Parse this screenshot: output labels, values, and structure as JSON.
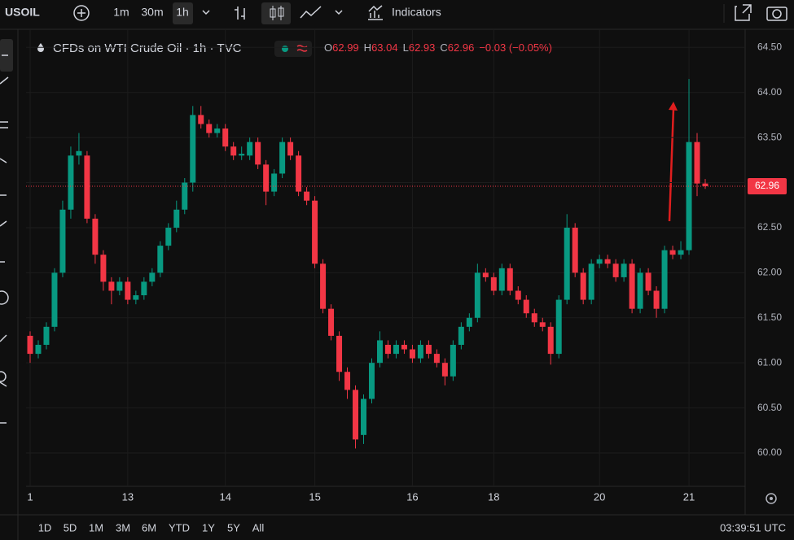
{
  "toolbar": {
    "symbol": "USOIL",
    "intervals": [
      "1m",
      "30m",
      "1h"
    ],
    "indicators": "Indicators"
  },
  "chart_data": {
    "type": "candlestick",
    "title": "CFDs on WTI Crude Oil · 1h · TVC",
    "ohlc_legend": [
      {
        "label": "O",
        "value": 62.99
      },
      {
        "label": "H",
        "value": 63.04
      },
      {
        "label": "L",
        "value": 62.93
      },
      {
        "label": "C",
        "value": 62.96
      }
    ],
    "change": "−0.03 (−0.05%)",
    "categories": [
      "1",
      null,
      null,
      null,
      null,
      null,
      null,
      null,
      null,
      null,
      null,
      null,
      "13",
      null,
      null,
      null,
      null,
      null,
      null,
      null,
      null,
      null,
      null,
      null,
      "14",
      null,
      null,
      null,
      null,
      null,
      null,
      null,
      null,
      null,
      null,
      "15",
      null,
      null,
      null,
      null,
      null,
      null,
      null,
      null,
      null,
      null,
      null,
      "16",
      null,
      null,
      null,
      null,
      null,
      null,
      null,
      null,
      null,
      "18",
      null,
      null,
      null,
      null,
      null,
      null,
      null,
      null,
      null,
      null,
      null,
      null,
      "20",
      null,
      null,
      null,
      null,
      null,
      null,
      null,
      null,
      null,
      null,
      "21",
      null,
      null
    ],
    "open": [
      61.3,
      61.1,
      61.2,
      61.4,
      62.0,
      62.7,
      63.3,
      63.3,
      62.6,
      62.2,
      61.9,
      61.8,
      61.9,
      61.7,
      61.75,
      61.9,
      62.0,
      62.3,
      62.5,
      62.7,
      63.0,
      63.75,
      63.65,
      63.55,
      63.6,
      63.4,
      63.3,
      63.3,
      63.45,
      63.2,
      62.9,
      63.1,
      63.45,
      63.3,
      62.9,
      62.8,
      62.1,
      61.6,
      61.3,
      60.9,
      60.7,
      60.2,
      60.6,
      61.0,
      61.2,
      61.1,
      61.2,
      61.15,
      61.05,
      61.2,
      61.1,
      61.0,
      60.85,
      61.2,
      61.4,
      61.5,
      62.0,
      61.95,
      61.8,
      62.05,
      61.8,
      61.7,
      61.55,
      61.45,
      61.4,
      61.1,
      61.7,
      62.5,
      62.0,
      61.7,
      62.1,
      62.15,
      62.1,
      61.95,
      62.1,
      61.6,
      62.0,
      61.8,
      61.6,
      62.25,
      62.2,
      62.25,
      63.45,
      62.99
    ],
    "high": [
      61.35,
      61.25,
      61.45,
      62.05,
      62.8,
      63.4,
      63.55,
      63.35,
      62.65,
      62.25,
      61.95,
      61.95,
      61.95,
      61.8,
      61.95,
      62.05,
      62.35,
      62.55,
      62.8,
      63.05,
      63.85,
      63.85,
      63.7,
      63.65,
      63.65,
      63.45,
      63.4,
      63.5,
      63.5,
      63.25,
      63.15,
      63.5,
      63.5,
      63.35,
      62.95,
      62.85,
      62.15,
      61.65,
      61.35,
      60.95,
      60.75,
      60.65,
      61.05,
      61.35,
      61.25,
      61.25,
      61.25,
      61.2,
      61.25,
      61.25,
      61.15,
      61.05,
      61.25,
      61.45,
      61.55,
      62.1,
      62.05,
      62.0,
      62.1,
      62.1,
      61.85,
      61.75,
      61.6,
      61.5,
      61.45,
      61.75,
      62.65,
      62.55,
      62.05,
      62.15,
      62.2,
      62.2,
      62.15,
      62.15,
      62.15,
      62.05,
      62.05,
      61.85,
      62.3,
      62.3,
      62.35,
      64.15,
      63.55,
      63.04
    ],
    "low": [
      61.0,
      61.05,
      61.15,
      61.35,
      61.95,
      62.6,
      63.2,
      62.55,
      62.1,
      61.8,
      61.65,
      61.75,
      61.65,
      61.65,
      61.7,
      61.85,
      61.95,
      62.25,
      62.45,
      62.65,
      62.9,
      63.6,
      63.5,
      63.5,
      63.35,
      63.25,
      63.25,
      63.25,
      63.15,
      62.75,
      62.85,
      63.05,
      63.25,
      62.85,
      62.75,
      62.05,
      61.55,
      61.25,
      60.8,
      60.6,
      60.05,
      60.1,
      60.55,
      60.95,
      61.05,
      61.05,
      61.1,
      61.0,
      61.0,
      61.05,
      60.95,
      60.75,
      60.8,
      61.15,
      61.35,
      61.45,
      61.9,
      61.75,
      61.75,
      61.75,
      61.65,
      61.5,
      61.4,
      61.35,
      60.98,
      61.05,
      61.65,
      61.95,
      61.65,
      61.65,
      62.05,
      62.05,
      61.9,
      61.9,
      61.55,
      61.55,
      61.75,
      61.5,
      61.55,
      62.15,
      62.15,
      62.2,
      62.85,
      62.93
    ],
    "close": [
      61.1,
      61.2,
      61.4,
      62.0,
      62.7,
      63.3,
      63.35,
      62.6,
      62.2,
      61.9,
      61.8,
      61.9,
      61.7,
      61.75,
      61.9,
      62.0,
      62.3,
      62.5,
      62.7,
      63.0,
      63.75,
      63.65,
      63.55,
      63.6,
      63.4,
      63.3,
      63.32,
      63.45,
      63.2,
      62.9,
      63.1,
      63.45,
      63.3,
      62.9,
      62.8,
      62.1,
      61.6,
      61.3,
      60.9,
      60.7,
      60.15,
      60.6,
      61.0,
      61.25,
      61.1,
      61.2,
      61.15,
      61.05,
      61.2,
      61.1,
      61.0,
      60.85,
      61.2,
      61.4,
      61.5,
      62.0,
      61.95,
      61.8,
      62.05,
      61.8,
      61.7,
      61.55,
      61.45,
      61.4,
      61.1,
      61.7,
      62.5,
      62.0,
      61.7,
      62.1,
      62.15,
      62.1,
      61.95,
      62.1,
      61.6,
      62.0,
      61.8,
      61.6,
      62.25,
      62.2,
      62.25,
      63.45,
      62.99,
      62.96
    ],
    "up_color": "#089981",
    "down_color": "#f23645",
    "ylim": [
      59.63,
      64.62
    ],
    "yticks": [
      {
        "value": 60,
        "label": "60.00"
      },
      {
        "value": 60.5,
        "label": "60.50"
      },
      {
        "value": 61,
        "label": "61.00"
      },
      {
        "value": 61.5,
        "label": "61.50"
      },
      {
        "value": 62,
        "label": "62.00"
      },
      {
        "value": 62.5,
        "label": "62.50"
      },
      {
        "value": 63,
        "label": "63.00"
      },
      {
        "value": 63.5,
        "label": "63.50"
      },
      {
        "value": 64,
        "label": "64.00"
      },
      {
        "value": 64.5,
        "label": "64.50"
      }
    ],
    "grid": true
  },
  "range_buttons": [
    "1D",
    "5D",
    "1M",
    "3M",
    "6M",
    "YTD",
    "1Y",
    "5Y",
    "All"
  ],
  "clock": "03:39:51 UTC"
}
